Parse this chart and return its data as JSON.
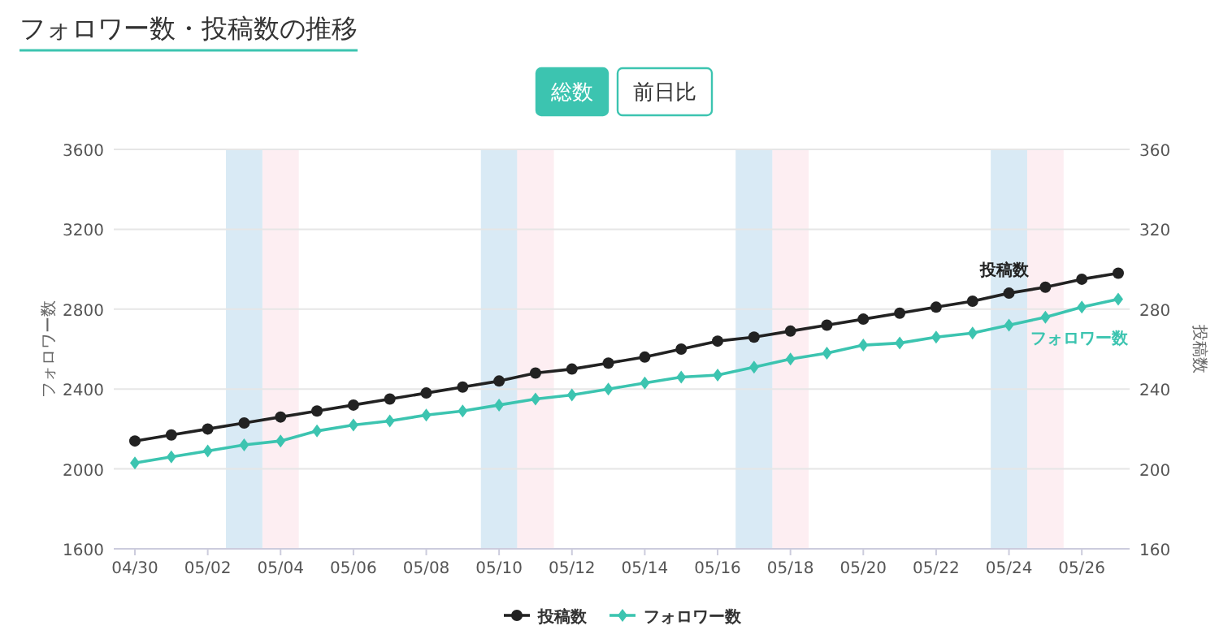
{
  "chart_data": {
    "type": "line",
    "title": "フォロワー数・投稿数の推移",
    "annotations": [
      "総数",
      "前日比"
    ],
    "categories": [
      "04/30",
      null,
      "05/02",
      null,
      "05/04",
      null,
      "05/06",
      null,
      "05/08",
      null,
      "05/10",
      null,
      "05/12",
      null,
      "05/14",
      null,
      "05/16",
      null,
      "05/18",
      null,
      "05/20",
      null,
      "05/22",
      null,
      "05/24",
      null,
      "05/26",
      null
    ],
    "series": [
      {
        "name": "投稿数",
        "color": "#222222",
        "axis": "y2",
        "marker": "circle",
        "values": [
          214,
          217,
          220,
          223,
          226,
          229,
          232,
          235,
          238,
          241,
          244,
          248,
          250,
          253,
          256,
          260,
          264,
          266,
          269,
          272,
          275,
          278,
          281,
          284,
          288,
          291,
          295,
          298
        ]
      },
      {
        "name": "フォロワー数",
        "color": "#3cc4b0",
        "axis": "y",
        "marker": "diamond",
        "values": [
          2030,
          2060,
          2090,
          2120,
          2140,
          2190,
          2220,
          2240,
          2270,
          2290,
          2320,
          2350,
          2370,
          2400,
          2430,
          2460,
          2470,
          2510,
          2550,
          2580,
          2620,
          2630,
          2660,
          2680,
          2720,
          2760,
          2810,
          2850
        ]
      }
    ],
    "ylabel": "フォロワー数",
    "y2label": "投稿数",
    "ylim": [
      1600,
      3600
    ],
    "yticks": [
      1600,
      2000,
      2400,
      2800,
      3200,
      3600
    ],
    "y2lim": [
      160,
      360
    ],
    "y2ticks": [
      160,
      200,
      240,
      280,
      320,
      360
    ],
    "bands": [
      {
        "axis": "x",
        "from": "05/04",
        "to": "05/04",
        "color": "#fdeef2"
      },
      {
        "axis": "x",
        "from": "05/10",
        "to": "05/10",
        "color": "#d9eaf5"
      },
      {
        "axis": "x",
        "from": "05/18",
        "to": "05/18",
        "color": "#fdeef2"
      },
      {
        "axis": "x",
        "from": "05/24",
        "to": "05/24",
        "color": "#d9eaf5"
      }
    ],
    "grid": "y",
    "legend": "bottom",
    "line_style": "solid"
  }
}
